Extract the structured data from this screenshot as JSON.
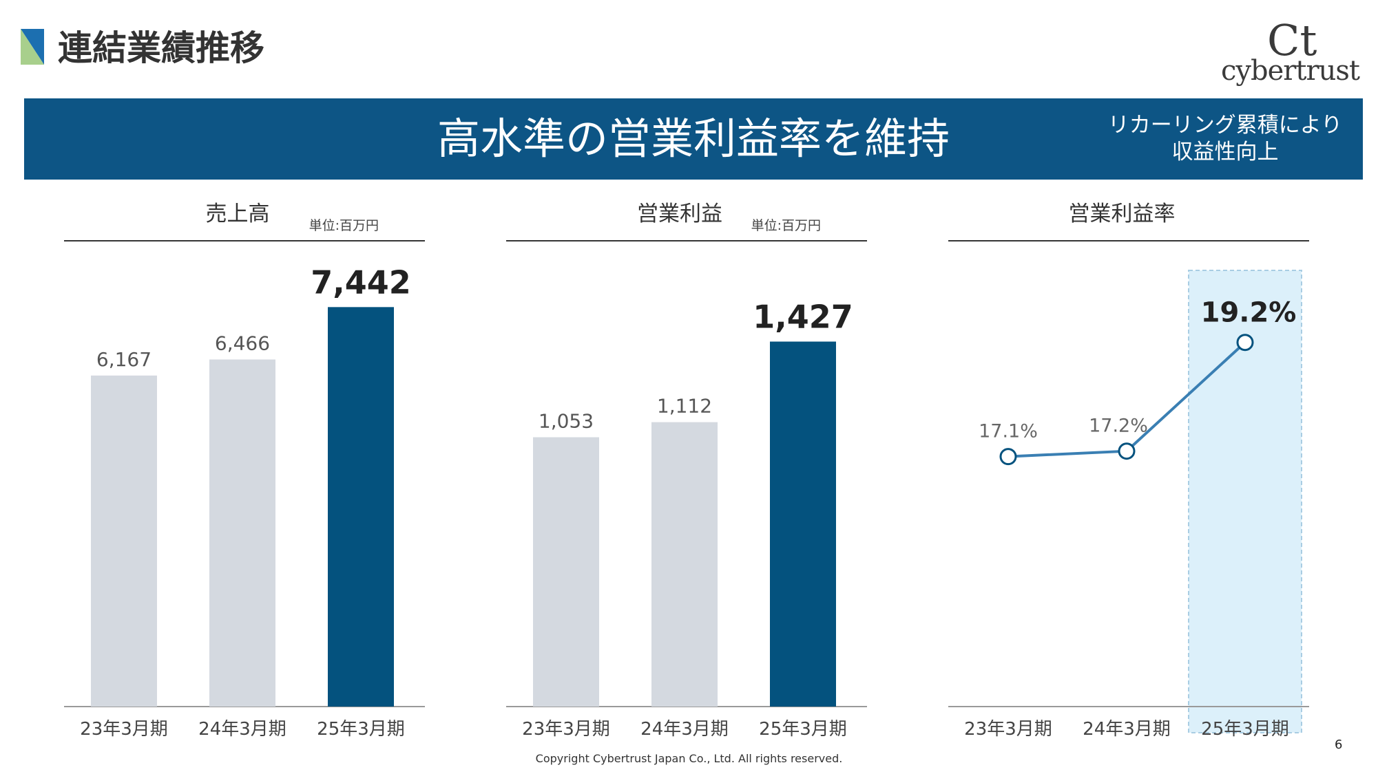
{
  "header": {
    "title": "連結業績推移",
    "icon": "blue-green-triangle-icon",
    "logo_text": "cybertrust",
    "logo_mark": "Ct",
    "logo_icon": "cybertrust-logo-icon"
  },
  "banner": {
    "headline": "高水準の営業利益率を維持",
    "note_line1": "リカーリング累積により",
    "note_line2": "収益性向上",
    "color": "#0d5585"
  },
  "colors": {
    "past_bar": "#d4d9e0",
    "current_bar": "#04527e",
    "line": "#3a7fb3",
    "highlight": "#dcf0fa",
    "highlight_border": "#a9cde3"
  },
  "chart_data": [
    {
      "type": "bar",
      "title": "売上高",
      "unit": "単位:百万円",
      "categories": [
        "23年3月期",
        "24年3月期",
        "25年3月期"
      ],
      "values": [
        6167,
        6466,
        7442
      ],
      "value_labels": [
        "6,167",
        "6,466",
        "7,442"
      ],
      "highlight_index": 2,
      "ylim": [
        0,
        8100
      ],
      "grid": false
    },
    {
      "type": "bar",
      "title": "営業利益",
      "unit": "単位:百万円",
      "categories": [
        "23年3月期",
        "24年3月期",
        "25年3月期"
      ],
      "values": [
        1053,
        1112,
        1427
      ],
      "value_labels": [
        "1,053",
        "1,112",
        "1,427"
      ],
      "highlight_index": 2,
      "ylim": [
        0,
        1700
      ],
      "grid": false
    },
    {
      "type": "line",
      "title": "営業利益率",
      "categories": [
        "23年3月期",
        "24年3月期",
        "25年3月期"
      ],
      "values": [
        17.1,
        17.2,
        19.2
      ],
      "value_labels": [
        "17.1%",
        "17.2%",
        "19.2%"
      ],
      "highlight_index": 2,
      "ylim": [
        12.5,
        20.5
      ],
      "grid": false
    }
  ],
  "footer": {
    "copyright": "Copyright Cybertrust Japan Co., Ltd. All rights reserved.",
    "page": "6"
  }
}
